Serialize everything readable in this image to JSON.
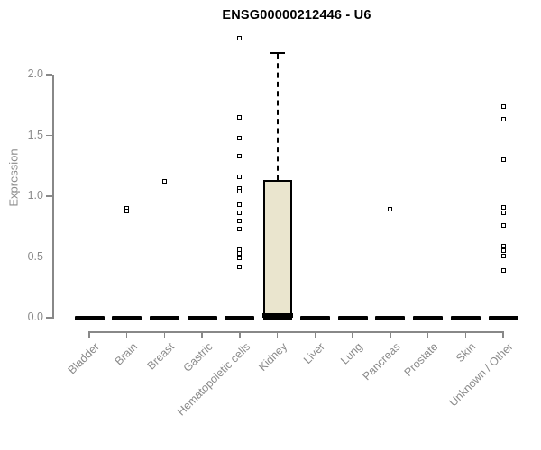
{
  "title": "ENSG00000212446 - U6",
  "y_axis": {
    "label": "Expression",
    "ticks": [
      "0.0",
      "0.5",
      "1.0",
      "1.5",
      "2.0"
    ]
  },
  "colors": {
    "box_fill": "#eae5ce",
    "box_border": "#000000",
    "axis": "#888888",
    "tick_text": "#8a8a8a",
    "title_text": "#000000",
    "outlier": "#000000"
  },
  "chart_data": {
    "type": "box",
    "title": "ENSG00000212446 - U6",
    "xlabel": "",
    "ylabel": "Expression",
    "ylim": [
      0,
      2.3
    ],
    "ytick_values": [
      0.0,
      0.5,
      1.0,
      1.5,
      2.0
    ],
    "grid": false,
    "categories": [
      "Bladder",
      "Brain",
      "Breast",
      "Gastric",
      "Hematopoietic cells",
      "Kidney",
      "Liver",
      "Lung",
      "Pancreas",
      "Prostate",
      "Skin",
      "Unknown / Other"
    ],
    "boxes": [
      {
        "category": "Bladder",
        "median": 0,
        "q1": 0,
        "q3": 0,
        "whisker_low": 0,
        "whisker_high": 0,
        "outliers": []
      },
      {
        "category": "Brain",
        "median": 0,
        "q1": 0,
        "q3": 0,
        "whisker_low": 0,
        "whisker_high": 0,
        "outliers": [
          0.9,
          0.88
        ]
      },
      {
        "category": "Breast",
        "median": 0,
        "q1": 0,
        "q3": 0,
        "whisker_low": 0,
        "whisker_high": 0,
        "outliers": [
          1.12
        ]
      },
      {
        "category": "Gastric",
        "median": 0,
        "q1": 0,
        "q3": 0,
        "whisker_low": 0,
        "whisker_high": 0,
        "outliers": []
      },
      {
        "category": "Hematopoietic cells",
        "median": 0,
        "q1": 0,
        "q3": 0,
        "whisker_low": 0,
        "whisker_high": 0,
        "outliers": [
          2.3,
          1.65,
          1.48,
          1.33,
          1.16,
          1.06,
          1.04,
          0.93,
          0.86,
          0.8,
          0.73,
          0.56,
          0.53,
          0.49,
          0.42
        ]
      },
      {
        "category": "Kidney",
        "median": 0.02,
        "q1": 0,
        "q3": 1.13,
        "whisker_low": 0,
        "whisker_high": 2.17,
        "outliers": []
      },
      {
        "category": "Liver",
        "median": 0,
        "q1": 0,
        "q3": 0,
        "whisker_low": 0,
        "whisker_high": 0,
        "outliers": []
      },
      {
        "category": "Lung",
        "median": 0,
        "q1": 0,
        "q3": 0,
        "whisker_low": 0,
        "whisker_high": 0,
        "outliers": []
      },
      {
        "category": "Pancreas",
        "median": 0,
        "q1": 0,
        "q3": 0,
        "whisker_low": 0,
        "whisker_high": 0,
        "outliers": [
          0.89
        ]
      },
      {
        "category": "Prostate",
        "median": 0,
        "q1": 0,
        "q3": 0,
        "whisker_low": 0,
        "whisker_high": 0,
        "outliers": []
      },
      {
        "category": "Skin",
        "median": 0,
        "q1": 0,
        "q3": 0,
        "whisker_low": 0,
        "whisker_high": 0,
        "outliers": []
      },
      {
        "category": "Unknown / Other",
        "median": 0,
        "q1": 0,
        "q3": 0,
        "whisker_low": 0,
        "whisker_high": 0,
        "outliers": [
          1.74,
          1.63,
          1.3,
          0.91,
          0.86,
          0.76,
          0.59,
          0.55,
          0.51,
          0.39
        ]
      }
    ]
  }
}
